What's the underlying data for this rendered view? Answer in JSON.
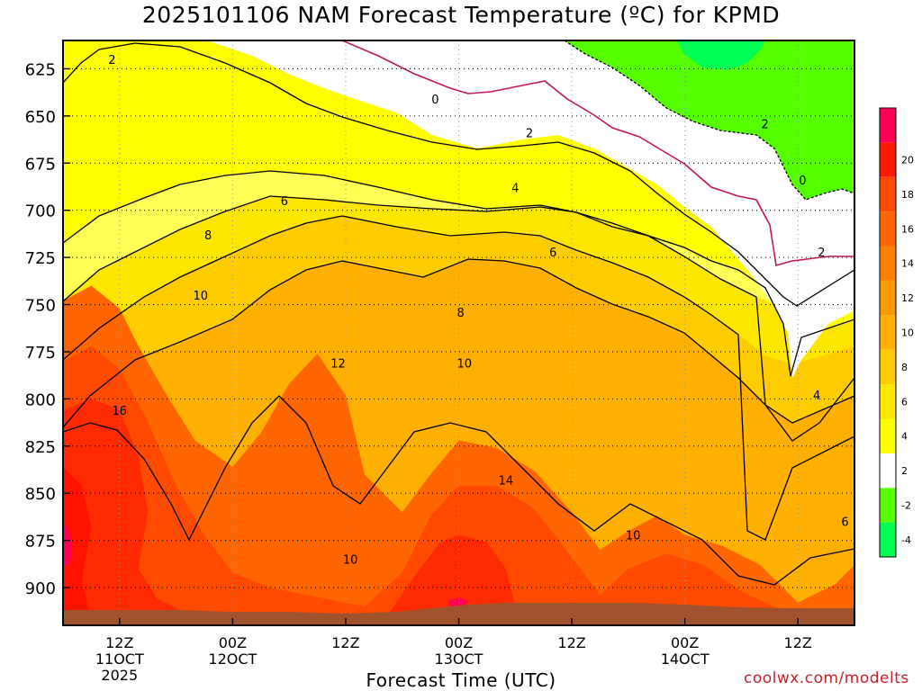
{
  "chart_data": {
    "type": "heatmap",
    "title": "2025101106 NAM Forecast Temperature (ºC) for KPMD",
    "xlabel": "Forecast Time (UTC)",
    "ylabel": "",
    "credit": "coolwx.com/modelts",
    "y_axis": {
      "reversed": true,
      "range": [
        610,
        920
      ],
      "ticks": [
        625,
        650,
        675,
        700,
        725,
        750,
        775,
        800,
        825,
        850,
        875,
        900
      ]
    },
    "x_axis": {
      "range_hours": [
        6,
        90
      ],
      "ticks": [
        {
          "hour": 12,
          "lines": [
            "12Z",
            "11OCT",
            "2025"
          ]
        },
        {
          "hour": 24,
          "lines": [
            "00Z",
            "12OCT"
          ]
        },
        {
          "hour": 36,
          "lines": [
            "12Z"
          ]
        },
        {
          "hour": 48,
          "lines": [
            "00Z",
            "13OCT"
          ]
        },
        {
          "hour": 60,
          "lines": [
            "12Z"
          ]
        },
        {
          "hour": 72,
          "lines": [
            "00Z",
            "14OCT"
          ]
        },
        {
          "hour": 84,
          "lines": [
            "12Z"
          ]
        }
      ]
    },
    "grid": true,
    "legend_position": "right",
    "colorbar": [
      {
        "label": "-4",
        "color": "#00ff55"
      },
      {
        "label": "-2",
        "color": "#55ff00"
      },
      {
        "label": "2",
        "color": "#ffffff"
      },
      {
        "label": "4",
        "color": "#ffff00"
      },
      {
        "label": "6",
        "color": "#ffe600"
      },
      {
        "label": "8",
        "color": "#ffcc00"
      },
      {
        "label": "10",
        "color": "#ffb000"
      },
      {
        "label": "12",
        "color": "#ff9900"
      },
      {
        "label": "14",
        "color": "#ff7f00"
      },
      {
        "label": "16",
        "color": "#ff6600"
      },
      {
        "label": "18",
        "color": "#ff4a00"
      },
      {
        "label": "20",
        "color": "#ff1a00"
      },
      {
        "label": "",
        "color": "#ff0055"
      }
    ],
    "contour_labels": [
      {
        "text": "2",
        "hour": 11.2,
        "level": 620
      },
      {
        "text": "0",
        "hour": 45.5,
        "level": 641
      },
      {
        "text": "2",
        "hour": 55.5,
        "level": 659
      },
      {
        "text": "4",
        "hour": 54,
        "level": 688
      },
      {
        "text": "6",
        "hour": 29.5,
        "level": 695
      },
      {
        "text": "8",
        "hour": 21.4,
        "level": 713
      },
      {
        "text": "10",
        "hour": 20.6,
        "level": 745
      },
      {
        "text": "12",
        "hour": 35.2,
        "level": 781
      },
      {
        "text": "16",
        "hour": 12,
        "level": 806
      },
      {
        "text": "6",
        "hour": 58,
        "level": 722
      },
      {
        "text": "8",
        "hour": 48.2,
        "level": 754
      },
      {
        "text": "10",
        "hour": 48.6,
        "level": 781
      },
      {
        "text": "14",
        "hour": 53,
        "level": 843
      },
      {
        "text": "10",
        "hour": 36.5,
        "level": 885
      },
      {
        "text": "10",
        "hour": 66.5,
        "level": 872
      },
      {
        "text": "2",
        "hour": 80.5,
        "level": 654
      },
      {
        "text": "0",
        "hour": 84.5,
        "level": 684
      },
      {
        "text": "2",
        "hour": 86.5,
        "level": 722
      },
      {
        "text": "4",
        "hour": 86,
        "level": 798
      },
      {
        "text": "6",
        "hour": 89,
        "level": 865
      }
    ],
    "bands": [
      {
        "lower_c": 12,
        "fill": "#ff6600",
        "points": [
          [
            6,
            748
          ],
          [
            9,
            740
          ],
          [
            12,
            752
          ],
          [
            14,
            772
          ],
          [
            17,
            798
          ],
          [
            20,
            822
          ],
          [
            24,
            836
          ],
          [
            27,
            818
          ],
          [
            30,
            792
          ],
          [
            33,
            776
          ],
          [
            36,
            798
          ],
          [
            38,
            840
          ],
          [
            42,
            860
          ],
          [
            45,
            840
          ],
          [
            48,
            822
          ],
          [
            52,
            826
          ],
          [
            56,
            838
          ],
          [
            60,
            860
          ],
          [
            63,
            880
          ],
          [
            66,
            870
          ],
          [
            69,
            862
          ],
          [
            72,
            872
          ],
          [
            76,
            878
          ],
          [
            80,
            888
          ],
          [
            84,
            908
          ],
          [
            88,
            898
          ],
          [
            90,
            888
          ],
          [
            90,
            920
          ],
          [
            6,
            920
          ]
        ]
      },
      {
        "lower_c": 14,
        "fill": "#ff4a00",
        "points": [
          [
            6,
            780
          ],
          [
            9,
            772
          ],
          [
            12,
            784
          ],
          [
            15,
            812
          ],
          [
            18,
            846
          ],
          [
            21,
            872
          ],
          [
            24,
            892
          ],
          [
            28,
            900
          ],
          [
            32,
            904
          ],
          [
            38,
            910
          ],
          [
            42,
            892
          ],
          [
            45,
            862
          ],
          [
            48,
            846
          ],
          [
            52,
            846
          ],
          [
            56,
            858
          ],
          [
            60,
            884
          ],
          [
            63,
            904
          ],
          [
            66,
            890
          ],
          [
            70,
            882
          ],
          [
            74,
            888
          ],
          [
            78,
            902
          ],
          [
            84,
            916
          ],
          [
            90,
            912
          ],
          [
            90,
            920
          ],
          [
            6,
            920
          ]
        ]
      },
      {
        "lower_c": 16,
        "fill": "#ff2a00",
        "points": [
          [
            6,
            806
          ],
          [
            9,
            800
          ],
          [
            12,
            806
          ],
          [
            14,
            830
          ],
          [
            15,
            860
          ],
          [
            14,
            890
          ],
          [
            16,
            906
          ],
          [
            20,
            916
          ],
          [
            40,
            918
          ],
          [
            43,
            896
          ],
          [
            46,
            876
          ],
          [
            48,
            872
          ],
          [
            51,
            876
          ],
          [
            53,
            890
          ],
          [
            54,
            910
          ],
          [
            56,
            918
          ],
          [
            6,
            918
          ]
        ]
      },
      {
        "lower_c": 18,
        "fill": "#ff1200",
        "points": [
          [
            6,
            836
          ],
          [
            8,
            846
          ],
          [
            9,
            868
          ],
          [
            8,
            896
          ],
          [
            9,
            918
          ],
          [
            6,
            918
          ]
        ]
      }
    ]
  }
}
